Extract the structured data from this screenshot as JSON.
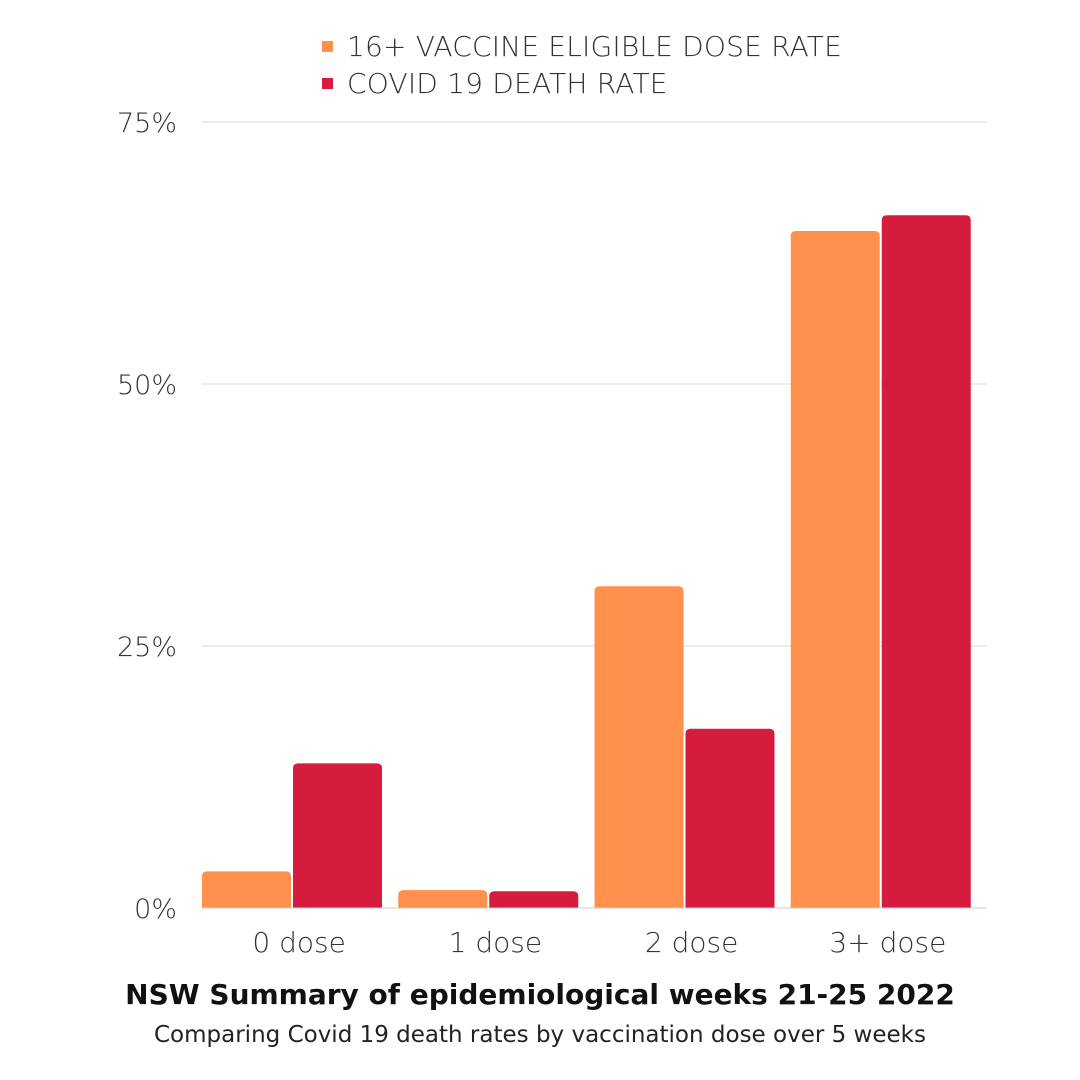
{
  "chart_data": {
    "type": "bar",
    "title": "NSW Summary of epidemiological weeks 21-25 2022",
    "subtitle": "Comparing Covid 19 death rates by vaccination dose over 5 weeks",
    "categories": [
      "0 dose",
      "1 dose",
      "2 dose",
      "3+ dose"
    ],
    "series": [
      {
        "name": "16+ VACCINE ELIGIBLE DOSE RATE",
        "color": "#FF914D",
        "values": [
          3.5,
          1.7,
          30.7,
          64.6
        ]
      },
      {
        "name": "COVID 19 DEATH RATE",
        "color": "#D61C3E",
        "values": [
          13.8,
          1.6,
          17.1,
          66.1
        ]
      }
    ],
    "y_ticks": [
      "0%",
      "25%",
      "50%",
      "75%"
    ],
    "y_tick_values": [
      0,
      25,
      50,
      75
    ],
    "ylim": [
      0,
      75
    ],
    "xlabel": "",
    "ylabel": "",
    "grid": true,
    "legend_position": "top"
  }
}
